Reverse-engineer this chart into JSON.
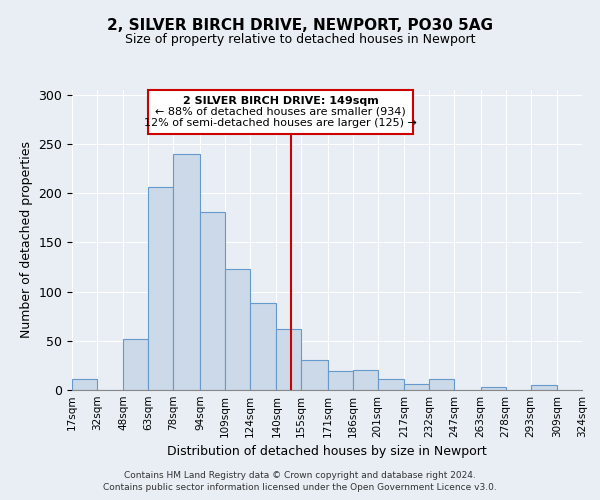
{
  "title": "2, SILVER BIRCH DRIVE, NEWPORT, PO30 5AG",
  "subtitle": "Size of property relative to detached houses in Newport",
  "xlabel": "Distribution of detached houses by size in Newport",
  "ylabel": "Number of detached properties",
  "bin_edges": [
    17,
    32,
    48,
    63,
    78,
    94,
    109,
    124,
    140,
    155,
    171,
    186,
    201,
    217,
    232,
    247,
    263,
    278,
    293,
    309,
    324
  ],
  "bar_heights": [
    11,
    0,
    52,
    206,
    240,
    181,
    123,
    88,
    62,
    30,
    19,
    20,
    11,
    6,
    11,
    0,
    3,
    0,
    5,
    0
  ],
  "bar_color": "#ccd9e8",
  "bar_edge_color": "#6699cc",
  "vline_x": 149,
  "vline_color": "#cc0000",
  "annotation_title": "2 SILVER BIRCH DRIVE: 149sqm",
  "annotation_line1": "← 88% of detached houses are smaller (934)",
  "annotation_line2": "12% of semi-detached houses are larger (125) →",
  "annotation_box_edge_color": "#cc0000",
  "tick_labels": [
    "17sqm",
    "32sqm",
    "48sqm",
    "63sqm",
    "78sqm",
    "94sqm",
    "109sqm",
    "124sqm",
    "140sqm",
    "155sqm",
    "171sqm",
    "186sqm",
    "201sqm",
    "217sqm",
    "232sqm",
    "247sqm",
    "263sqm",
    "278sqm",
    "293sqm",
    "309sqm",
    "324sqm"
  ],
  "ylim": [
    0,
    305
  ],
  "yticks": [
    0,
    50,
    100,
    150,
    200,
    250,
    300
  ],
  "footer_line1": "Contains HM Land Registry data © Crown copyright and database right 2024.",
  "footer_line2": "Contains public sector information licensed under the Open Government Licence v3.0.",
  "background_color": "#e8eef4"
}
